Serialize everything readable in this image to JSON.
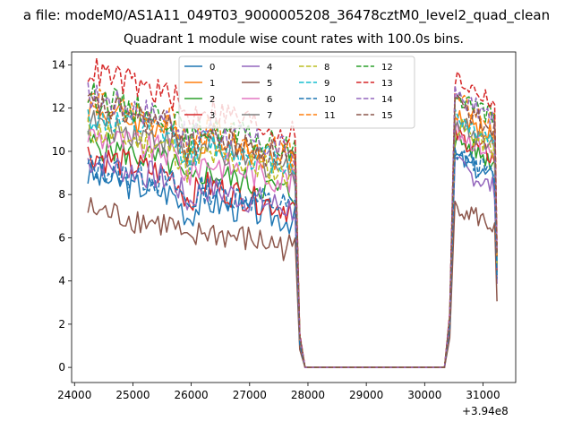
{
  "figure": {
    "suptitle": "a file: modeM0/AS1A11_049T03_9000005208_36478cztM0_level2_quad_clean",
    "title": "Quadrant 1 module wise count rates with 100.0s bins.",
    "x_offset_label": "+3.94e8"
  },
  "chart_data": {
    "type": "line",
    "title": "Quadrant 1 module wise count rates with 100.0s bins.",
    "xlabel": "",
    "ylabel": "",
    "x_offset": 394000000,
    "xlim": [
      23950,
      31560
    ],
    "ylim": [
      -0.7,
      14.6
    ],
    "x_ticks": [
      24000,
      25000,
      26000,
      27000,
      28000,
      29000,
      30000,
      31000
    ],
    "x_tick_labels": [
      "24000",
      "25000",
      "26000",
      "27000",
      "28000",
      "29000",
      "30000",
      "31000"
    ],
    "y_ticks": [
      0,
      2,
      4,
      6,
      8,
      10,
      12,
      14
    ],
    "y_tick_labels": [
      "0",
      "2",
      "4",
      "6",
      "8",
      "10",
      "12",
      "14"
    ],
    "grid": false,
    "legend": {
      "placement": "upper-center",
      "columns": 4
    },
    "segments": {
      "active1": [
        24230,
        27780
      ],
      "drop_to": 27860,
      "zero": [
        27950,
        30340
      ],
      "rise_at": 30430,
      "active2": [
        30520,
        31240
      ]
    },
    "series": [
      {
        "name": "0",
        "color": "#1f77b4",
        "dash": "solid",
        "level1_start": 8.9,
        "level1_end": 6.8,
        "level2": 9.0
      },
      {
        "name": "1",
        "color": "#ff7f0e",
        "dash": "solid",
        "level1_start": 12.0,
        "level1_end": 9.5,
        "level2": 11.0
      },
      {
        "name": "2",
        "color": "#2ca02c",
        "dash": "solid",
        "level1_start": 10.4,
        "level1_end": 8.0,
        "level2": 9.8
      },
      {
        "name": "3",
        "color": "#d62728",
        "dash": "solid",
        "level1_start": 9.9,
        "level1_end": 7.3,
        "level2": 10.0
      },
      {
        "name": "4",
        "color": "#9467bd",
        "dash": "solid",
        "level1_start": 9.6,
        "level1_end": 7.3,
        "level2": 8.6
      },
      {
        "name": "5",
        "color": "#8c564b",
        "dash": "solid",
        "level1_start": 7.3,
        "level1_end": 5.5,
        "level2": 6.8
      },
      {
        "name": "6",
        "color": "#e377c2",
        "dash": "solid",
        "level1_start": 10.8,
        "level1_end": 8.6,
        "level2": 10.2
      },
      {
        "name": "7",
        "color": "#7f7f7f",
        "dash": "solid",
        "level1_start": 11.4,
        "level1_end": 9.1,
        "level2": 10.6
      },
      {
        "name": "8",
        "color": "#bcbd22",
        "dash": "dashed",
        "level1_start": 11.0,
        "level1_end": 8.9,
        "level2": 10.4
      },
      {
        "name": "9",
        "color": "#17becf",
        "dash": "dashed",
        "level1_start": 11.6,
        "level1_end": 9.4,
        "level2": 10.8
      },
      {
        "name": "10",
        "color": "#1f77b4",
        "dash": "dashed",
        "level1_start": 9.3,
        "level1_end": 7.4,
        "level2": 9.2
      },
      {
        "name": "11",
        "color": "#ff7f0e",
        "dash": "dashed",
        "level1_start": 12.4,
        "level1_end": 9.8,
        "level2": 11.6
      },
      {
        "name": "12",
        "color": "#2ca02c",
        "dash": "dashed",
        "level1_start": 12.6,
        "level1_end": 10.0,
        "level2": 11.9
      },
      {
        "name": "13",
        "color": "#d62728",
        "dash": "dashed",
        "level1_start": 13.8,
        "level1_end": 10.7,
        "level2": 12.6
      },
      {
        "name": "14",
        "color": "#9467bd",
        "dash": "dashed",
        "level1_start": 12.6,
        "level1_end": 9.9,
        "level2": 11.8
      },
      {
        "name": "15",
        "color": "#8c564b",
        "dash": "dashed",
        "level1_start": 12.2,
        "level1_end": 9.6,
        "level2": 11.4
      }
    ]
  }
}
